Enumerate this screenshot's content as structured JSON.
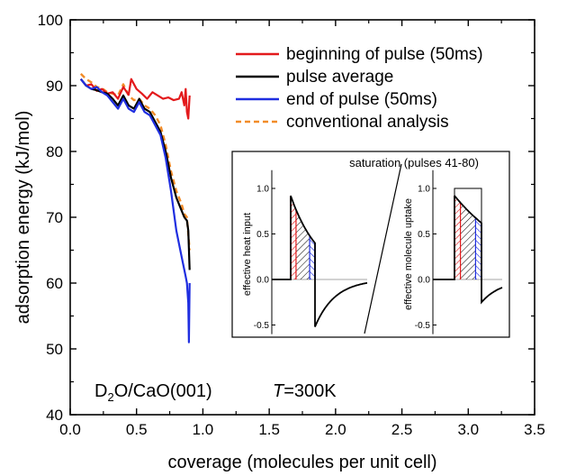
{
  "chart_data": {
    "type": "line",
    "xlabel": "coverage (molecules per unit cell)",
    "ylabel": "adsorption energy (kJ/mol)",
    "xlim": [
      0,
      3.5
    ],
    "ylim": [
      40,
      100
    ],
    "xticks": [
      "0.0",
      "0.5",
      "1.0",
      "1.5",
      "2.0",
      "2.5",
      "3.0",
      "3.5"
    ],
    "yticks": [
      "40",
      "50",
      "60",
      "70",
      "80",
      "90",
      "100"
    ],
    "grid": false,
    "legend_position": "top-right",
    "series": [
      {
        "name": "beginning of pulse (50ms)",
        "color": "#e31a1c",
        "style": "solid",
        "points": [
          [
            0.08,
            91.0
          ],
          [
            0.12,
            90.0
          ],
          [
            0.16,
            90.2
          ],
          [
            0.2,
            89.2
          ],
          [
            0.24,
            89.5
          ],
          [
            0.28,
            88.8
          ],
          [
            0.32,
            89.0
          ],
          [
            0.36,
            88.0
          ],
          [
            0.4,
            89.8
          ],
          [
            0.44,
            88.6
          ],
          [
            0.46,
            91.0
          ],
          [
            0.5,
            89.5
          ],
          [
            0.54,
            88.8
          ],
          [
            0.58,
            88.0
          ],
          [
            0.62,
            89.0
          ],
          [
            0.66,
            88.5
          ],
          [
            0.7,
            88.0
          ],
          [
            0.74,
            88.2
          ],
          [
            0.78,
            87.8
          ],
          [
            0.82,
            88.0
          ],
          [
            0.84,
            89.0
          ],
          [
            0.86,
            87.0
          ],
          [
            0.87,
            89.5
          ],
          [
            0.88,
            86.0
          ],
          [
            0.89,
            85.0
          ],
          [
            0.9,
            88.5
          ]
        ]
      },
      {
        "name": "pulse average",
        "color": "#000000",
        "style": "solid",
        "points": [
          [
            0.08,
            91.0
          ],
          [
            0.12,
            90.0
          ],
          [
            0.16,
            89.5
          ],
          [
            0.2,
            89.3
          ],
          [
            0.24,
            89.0
          ],
          [
            0.28,
            88.8
          ],
          [
            0.32,
            88.0
          ],
          [
            0.36,
            87.0
          ],
          [
            0.4,
            88.5
          ],
          [
            0.44,
            87.0
          ],
          [
            0.48,
            86.5
          ],
          [
            0.52,
            88.0
          ],
          [
            0.56,
            86.5
          ],
          [
            0.6,
            86.0
          ],
          [
            0.64,
            84.5
          ],
          [
            0.68,
            83.0
          ],
          [
            0.72,
            80.0
          ],
          [
            0.76,
            76.0
          ],
          [
            0.8,
            73.0
          ],
          [
            0.84,
            71.0
          ],
          [
            0.86,
            70.0
          ],
          [
            0.88,
            69.5
          ],
          [
            0.89,
            68.0
          ],
          [
            0.9,
            62.0
          ]
        ]
      },
      {
        "name": "end of pulse (50ms)",
        "color": "#1f2ee0",
        "style": "solid",
        "points": [
          [
            0.08,
            91.0
          ],
          [
            0.12,
            90.0
          ],
          [
            0.16,
            89.5
          ],
          [
            0.2,
            89.8
          ],
          [
            0.24,
            89.0
          ],
          [
            0.28,
            88.5
          ],
          [
            0.32,
            87.5
          ],
          [
            0.36,
            86.5
          ],
          [
            0.4,
            88.0
          ],
          [
            0.44,
            86.5
          ],
          [
            0.48,
            86.0
          ],
          [
            0.52,
            87.5
          ],
          [
            0.56,
            86.0
          ],
          [
            0.6,
            85.5
          ],
          [
            0.64,
            84.0
          ],
          [
            0.68,
            82.5
          ],
          [
            0.72,
            79.0
          ],
          [
            0.76,
            74.0
          ],
          [
            0.8,
            68.0
          ],
          [
            0.84,
            64.0
          ],
          [
            0.86,
            62.0
          ],
          [
            0.87,
            61.0
          ],
          [
            0.88,
            60.0
          ],
          [
            0.89,
            57.0
          ],
          [
            0.895,
            51.0
          ],
          [
            0.9,
            60.0
          ]
        ]
      },
      {
        "name": "conventional analysis",
        "color": "#f28c28",
        "style": "dashed",
        "points": [
          [
            0.08,
            91.8
          ],
          [
            0.12,
            91.0
          ],
          [
            0.16,
            90.5
          ],
          [
            0.2,
            89.8
          ],
          [
            0.24,
            89.6
          ],
          [
            0.28,
            89.0
          ],
          [
            0.32,
            88.8
          ],
          [
            0.36,
            88.5
          ],
          [
            0.4,
            90.2
          ],
          [
            0.44,
            88.5
          ],
          [
            0.48,
            87.8
          ],
          [
            0.52,
            88.0
          ],
          [
            0.56,
            87.0
          ],
          [
            0.6,
            86.5
          ],
          [
            0.64,
            85.5
          ],
          [
            0.68,
            84.0
          ],
          [
            0.72,
            81.0
          ],
          [
            0.76,
            77.0
          ],
          [
            0.8,
            74.0
          ],
          [
            0.84,
            72.0
          ],
          [
            0.86,
            70.5
          ],
          [
            0.88,
            70.0
          ],
          [
            0.9,
            65.0
          ]
        ]
      }
    ],
    "annotations": {
      "sample_prefix": "D",
      "sample_sub": "2",
      "sample_suffix": "O/CaO(001)",
      "temp_var": "T",
      "temp_value": "=300K"
    },
    "inset": {
      "title": "saturation (pulses 41-80)",
      "left_ylabel": "effective heat input",
      "right_ylabel": "effective molecule uptake",
      "yticks": [
        "1.0",
        "0.5",
        "0.0",
        "-0.5"
      ],
      "ylim": [
        -0.65,
        1.2
      ],
      "heat_peak": 0.92,
      "heat_end": 0.4,
      "heat_undershoot": -0.52,
      "uptake_peak": 0.92,
      "uptake_end": 0.62,
      "uptake_undershoot": -0.25,
      "uptake_box_height": 1.0
    }
  }
}
